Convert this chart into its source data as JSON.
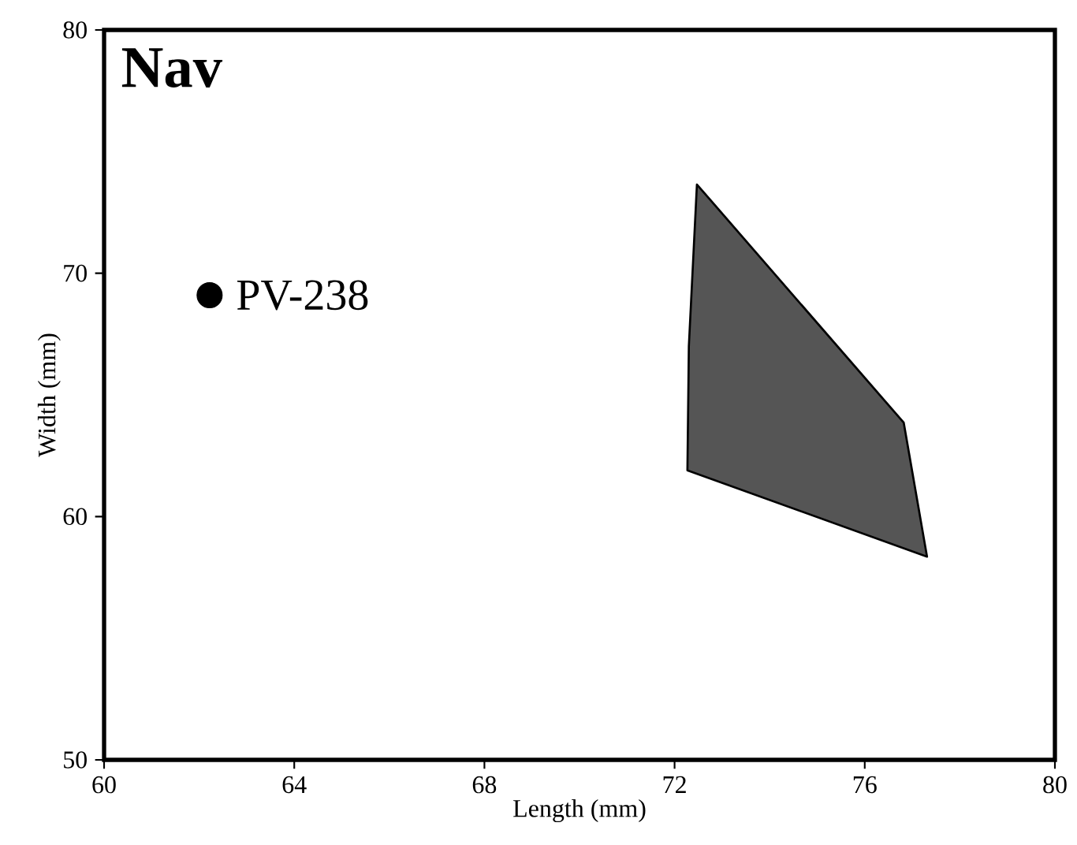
{
  "chart_data": {
    "type": "scatter",
    "title": "Nav",
    "xlabel": "Length (mm)",
    "ylabel": "Width (mm)",
    "xlim": [
      60,
      80
    ],
    "xticks": [
      60,
      64,
      68,
      72,
      76,
      80
    ],
    "ylim": [
      50,
      80
    ],
    "yticks": [
      50,
      60,
      70,
      80
    ],
    "series": [
      {
        "type": "area",
        "color": "#555555",
        "x": [
          72.47,
          76.82,
          77.31,
          72.27,
          72.3
        ],
        "values": [
          73.65,
          63.86,
          58.35,
          61.9,
          67.0
        ]
      },
      {
        "color": "#000000",
        "x": [
          62.22
        ],
        "values": [
          69.1
        ]
      }
    ],
    "annotations": [
      {
        "text": "PV-238",
        "x": 62.22,
        "y": 69.1
      }
    ]
  }
}
